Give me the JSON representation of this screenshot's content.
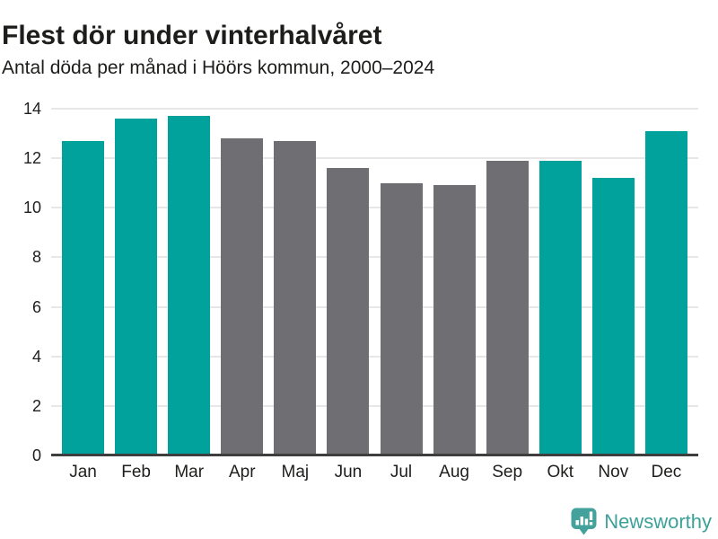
{
  "header": {
    "title": "Flest dör under vinterhalvåret",
    "subtitle": "Antal döda per månad i Höörs kommun, 2000–2024"
  },
  "chart_data": {
    "type": "bar",
    "title": "Flest dör under vinterhalvåret",
    "subtitle": "Antal döda per månad i Höörs kommun, 2000–2024",
    "categories": [
      "Jan",
      "Feb",
      "Mar",
      "Apr",
      "Maj",
      "Jun",
      "Jul",
      "Aug",
      "Sep",
      "Okt",
      "Nov",
      "Dec"
    ],
    "values": [
      12.7,
      13.6,
      13.7,
      12.8,
      12.7,
      11.6,
      11.0,
      10.9,
      11.9,
      11.9,
      11.2,
      13.1
    ],
    "bar_color_keys": [
      "teal",
      "teal",
      "teal",
      "gray",
      "gray",
      "gray",
      "gray",
      "gray",
      "gray",
      "teal",
      "teal",
      "teal"
    ],
    "palette": {
      "teal": "#00a29b",
      "gray": "#6e6e73"
    },
    "xlabel": "",
    "ylabel": "",
    "ylim": [
      0,
      14
    ],
    "yticks": [
      0,
      2,
      4,
      6,
      8,
      10,
      12,
      14
    ],
    "grid": "horizontal",
    "gridline_color": "#e7e7e7",
    "axis_line_color": "#3e3e3e",
    "legend": "none"
  },
  "footer": {
    "brand": "Newsworthy",
    "brand_color": "#3da19a",
    "logo_icon": "bar-chart-speech-bubble-icon",
    "logo_color": "#45a19b"
  }
}
